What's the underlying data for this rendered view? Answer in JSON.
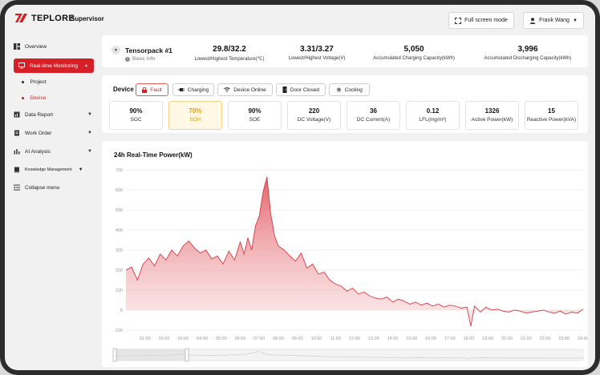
{
  "brand": {
    "logo_text": "TEPLORE",
    "app_title": "Supervisor"
  },
  "header": {
    "fullscreen_label": "Full screen mode",
    "user_name": "Frank Wang"
  },
  "sidebar": {
    "items": [
      {
        "label": "Overview"
      },
      {
        "label": "Real-time Monitoring"
      },
      {
        "label": "Project"
      },
      {
        "label": "Device"
      },
      {
        "label": "Data Report"
      },
      {
        "label": "Work Order"
      },
      {
        "label": "AI Analysis"
      },
      {
        "label": "Knowledge Management"
      },
      {
        "label": "Collapse menu"
      }
    ]
  },
  "pack": {
    "name": "Tensorpack #1",
    "info_label": "Basic Info",
    "stats": [
      {
        "value": "29.8/32.2",
        "label": "Lowest/Highest Temperature(℃)"
      },
      {
        "value": "3.31/3.27",
        "label": "Lowest/Highest Voltage(V)"
      },
      {
        "value": "5,050",
        "label": "Accumulated Charging Capacity(kWh)"
      },
      {
        "value": "3,996",
        "label": "Accumulated Discharging Capacity(kWh)"
      }
    ]
  },
  "device": {
    "title": "Device",
    "badges": [
      {
        "label": "Fault",
        "icon": "lock-icon"
      },
      {
        "label": "Charging",
        "icon": "plug-icon"
      },
      {
        "label": "Device Online",
        "icon": "wifi-icon"
      },
      {
        "label": "Door Closed",
        "icon": "door-icon"
      },
      {
        "label": "Cooling",
        "icon": "snowflake-icon"
      }
    ],
    "kpis": [
      {
        "value": "90%",
        "label": "SOC"
      },
      {
        "value": "70%",
        "label": "SOH"
      },
      {
        "value": "90%",
        "label": "SOE"
      },
      {
        "value": "220",
        "label": "DC Voltage(V)"
      },
      {
        "value": "36",
        "label": "DC Current(A)"
      },
      {
        "value": "0.12",
        "label": "LFL(mg/m³)"
      },
      {
        "value": "1326",
        "label": "Active Power(kW)"
      },
      {
        "value": "15",
        "label": "Reactive Power(kVA)"
      }
    ]
  },
  "colors": {
    "accent": "#d61f26",
    "warn": "#e39b00",
    "area_top": "#e05a62"
  },
  "chart_data": {
    "type": "area",
    "title": "24h Real-Time Power(kW)",
    "ylim": [
      -100,
      700
    ],
    "yticks": [
      -100,
      0,
      100,
      200,
      300,
      400,
      500,
      600,
      700
    ],
    "xlim": [
      0,
      24
    ],
    "xticks": [
      "01:00",
      "02:00",
      "03:00",
      "04:00",
      "05:00",
      "06:00",
      "07:00",
      "08:00",
      "09:00",
      "10:00",
      "11:00",
      "12:00",
      "13:00",
      "14:00",
      "15:00",
      "16:00",
      "17:00",
      "18:00",
      "19:00",
      "20:00",
      "21:00",
      "22:00",
      "23:00",
      "24:00"
    ],
    "series": [
      {
        "x": [
          0,
          0.3,
          0.6,
          0.9,
          1.2,
          1.5,
          1.8,
          2.1,
          2.4,
          2.7,
          3.0,
          3.3,
          3.6,
          3.9,
          4.2,
          4.5,
          4.8,
          5.1,
          5.4,
          5.7,
          6.0,
          6.2,
          6.4,
          6.6,
          6.8,
          7.0,
          7.2,
          7.4,
          7.6,
          7.8,
          8.0,
          8.3,
          8.6,
          8.9,
          9.2,
          9.5,
          9.8,
          10.1,
          10.4,
          10.7,
          11.0,
          11.3,
          11.6,
          11.9,
          12.2,
          12.5,
          12.8,
          13.1,
          13.4,
          13.7,
          14.0,
          14.3,
          14.6,
          14.9,
          15.2,
          15.5,
          15.8,
          16.1,
          16.4,
          16.7,
          17.0,
          17.3,
          17.6,
          17.9,
          18.1,
          18.3,
          18.6,
          18.9,
          19.2,
          19.5,
          19.8,
          20.1,
          20.4,
          20.7,
          21.0,
          21.3,
          21.6,
          21.9,
          22.2,
          22.5,
          22.8,
          23.1,
          23.4,
          23.7,
          24.0
        ],
        "values": [
          200,
          215,
          150,
          230,
          260,
          220,
          280,
          250,
          300,
          270,
          320,
          345,
          310,
          285,
          300,
          255,
          270,
          230,
          295,
          250,
          340,
          280,
          360,
          300,
          420,
          470,
          590,
          665,
          480,
          370,
          320,
          300,
          270,
          245,
          285,
          210,
          230,
          180,
          190,
          150,
          130,
          120,
          95,
          110,
          80,
          90,
          70,
          60,
          55,
          65,
          40,
          55,
          45,
          30,
          40,
          25,
          35,
          20,
          30,
          15,
          25,
          20,
          10,
          15,
          -80,
          20,
          -10,
          15,
          0,
          5,
          -5,
          -10,
          0,
          -5,
          -15,
          -10,
          -5,
          0,
          -10,
          -15,
          -5,
          -20,
          -10,
          -15,
          5
        ]
      }
    ]
  }
}
